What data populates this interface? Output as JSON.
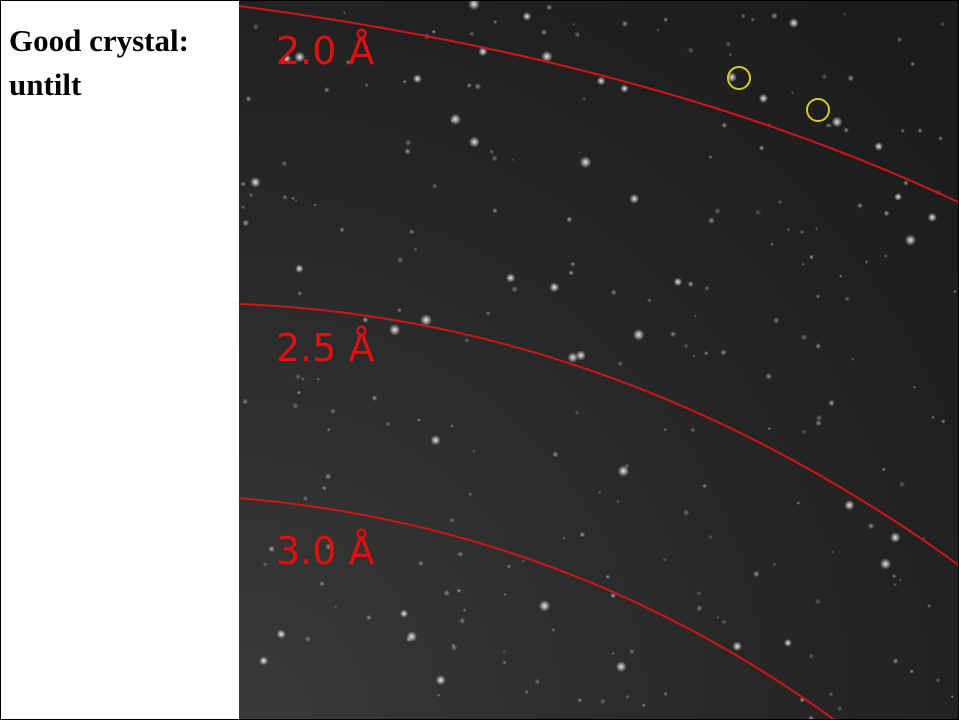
{
  "caption": {
    "lines": [
      "Good crystal:",
      "untilt"
    ]
  },
  "rings": [
    {
      "label": "2.0 Å"
    },
    {
      "label": "2.5 Å"
    },
    {
      "label": "3.0 Å"
    }
  ]
}
